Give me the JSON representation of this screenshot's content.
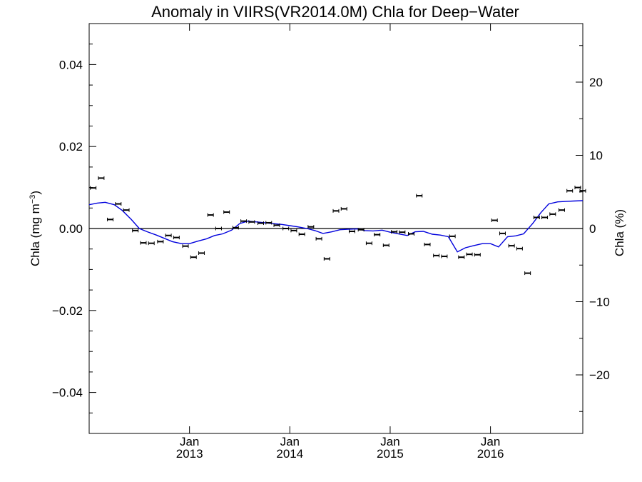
{
  "chart_data": {
    "type": "scatter",
    "title": "Anomaly in VIIRS(VR2014.0M) Chla for Deep−Water",
    "ylabel_left": "Chla (mg m",
    "ylabel_left_sup": "−3",
    "ylabel_left_close": ")",
    "ylabel_right": "Chla (%)",
    "xlim": [
      2012.0,
      2016.92
    ],
    "ylim_left": [
      -0.05,
      0.05
    ],
    "ylim_right": [
      -28.0,
      28.0
    ],
    "left_ticks": [
      {
        "value": 0.04,
        "label": "0.04"
      },
      {
        "value": 0.02,
        "label": "0.02"
      },
      {
        "value": 0.0,
        "label": "0.00"
      },
      {
        "value": -0.02,
        "label": "−0.02"
      },
      {
        "value": -0.04,
        "label": "−0.04"
      }
    ],
    "right_ticks": [
      {
        "value": 20,
        "label": "20"
      },
      {
        "value": 10,
        "label": "10"
      },
      {
        "value": 0,
        "label": "0"
      },
      {
        "value": -10,
        "label": "−10"
      },
      {
        "value": -20,
        "label": "−20"
      }
    ],
    "x_ticks": [
      {
        "value": 2013.0,
        "month": "Jan",
        "year": "2013"
      },
      {
        "value": 2014.0,
        "month": "Jan",
        "year": "2014"
      },
      {
        "value": 2015.0,
        "month": "Jan",
        "year": "2015"
      },
      {
        "value": 2016.0,
        "month": "Jan",
        "year": "2016"
      }
    ],
    "zero_line": 0.0,
    "points": [
      {
        "x": 2012.04,
        "y": 0.0099
      },
      {
        "x": 2012.12,
        "y": 0.0123
      },
      {
        "x": 2012.21,
        "y": 0.0022
      },
      {
        "x": 2012.29,
        "y": 0.006
      },
      {
        "x": 2012.37,
        "y": 0.0045
      },
      {
        "x": 2012.46,
        "y": -0.0005
      },
      {
        "x": 2012.54,
        "y": -0.0035
      },
      {
        "x": 2012.62,
        "y": -0.0036
      },
      {
        "x": 2012.71,
        "y": -0.0032
      },
      {
        "x": 2012.79,
        "y": -0.0017
      },
      {
        "x": 2012.87,
        "y": -0.0022
      },
      {
        "x": 2012.96,
        "y": -0.0043
      },
      {
        "x": 2013.04,
        "y": -0.007
      },
      {
        "x": 2013.12,
        "y": -0.006
      },
      {
        "x": 2013.21,
        "y": 0.0033
      },
      {
        "x": 2013.29,
        "y": 0.0
      },
      {
        "x": 2013.37,
        "y": 0.004
      },
      {
        "x": 2013.46,
        "y": 0.0002
      },
      {
        "x": 2013.54,
        "y": 0.0018
      },
      {
        "x": 2013.62,
        "y": 0.0016
      },
      {
        "x": 2013.71,
        "y": 0.0013
      },
      {
        "x": 2013.79,
        "y": 0.0014
      },
      {
        "x": 2013.87,
        "y": 0.0008
      },
      {
        "x": 2013.96,
        "y": 0.0
      },
      {
        "x": 2014.04,
        "y": -0.0005
      },
      {
        "x": 2014.12,
        "y": -0.0014
      },
      {
        "x": 2014.21,
        "y": 0.0004
      },
      {
        "x": 2014.29,
        "y": -0.0025
      },
      {
        "x": 2014.37,
        "y": -0.0074
      },
      {
        "x": 2014.46,
        "y": 0.0043
      },
      {
        "x": 2014.54,
        "y": 0.0048
      },
      {
        "x": 2014.62,
        "y": -0.0007
      },
      {
        "x": 2014.71,
        "y": -0.0003
      },
      {
        "x": 2014.79,
        "y": -0.0036
      },
      {
        "x": 2014.87,
        "y": -0.0015
      },
      {
        "x": 2014.96,
        "y": -0.0041
      },
      {
        "x": 2015.04,
        "y": -0.0008
      },
      {
        "x": 2015.12,
        "y": -0.0009
      },
      {
        "x": 2015.21,
        "y": -0.0013
      },
      {
        "x": 2015.29,
        "y": 0.008
      },
      {
        "x": 2015.37,
        "y": -0.0039
      },
      {
        "x": 2015.46,
        "y": -0.0066
      },
      {
        "x": 2015.54,
        "y": -0.0068
      },
      {
        "x": 2015.62,
        "y": -0.0019
      },
      {
        "x": 2015.71,
        "y": -0.007
      },
      {
        "x": 2015.79,
        "y": -0.0063
      },
      {
        "x": 2015.87,
        "y": -0.0064
      },
      {
        "x": 2016.04,
        "y": 0.002
      },
      {
        "x": 2016.12,
        "y": -0.0012
      },
      {
        "x": 2016.21,
        "y": -0.0042
      },
      {
        "x": 2016.29,
        "y": -0.0049
      },
      {
        "x": 2016.37,
        "y": -0.0109
      },
      {
        "x": 2016.46,
        "y": 0.0027
      },
      {
        "x": 2016.54,
        "y": 0.0027
      },
      {
        "x": 2016.62,
        "y": 0.0035
      },
      {
        "x": 2016.71,
        "y": 0.0045
      },
      {
        "x": 2016.79,
        "y": 0.0092
      },
      {
        "x": 2016.87,
        "y": 0.01
      },
      {
        "x": 2016.92,
        "y": 0.0092
      }
    ],
    "trend": {
      "color": "#0000dd",
      "x": [
        2012.0,
        2012.08,
        2012.16,
        2012.25,
        2012.33,
        2012.42,
        2012.5,
        2012.58,
        2012.67,
        2012.75,
        2012.83,
        2012.92,
        2013.0,
        2013.08,
        2013.17,
        2013.25,
        2013.33,
        2013.42,
        2013.5,
        2013.58,
        2013.67,
        2013.75,
        2013.83,
        2013.92,
        2014.0,
        2014.08,
        2014.17,
        2014.25,
        2014.33,
        2014.42,
        2014.5,
        2014.58,
        2014.67,
        2014.75,
        2014.83,
        2014.92,
        2015.0,
        2015.08,
        2015.17,
        2015.25,
        2015.33,
        2015.42,
        2015.5,
        2015.58,
        2015.67,
        2015.75,
        2015.83,
        2015.92,
        2016.0,
        2016.08,
        2016.17,
        2016.25,
        2016.33,
        2016.42,
        2016.5,
        2016.58,
        2016.67,
        2016.75,
        2016.83,
        2016.92
      ],
      "y": [
        0.0058,
        0.0062,
        0.0064,
        0.0058,
        0.0044,
        0.0022,
        0.0,
        -0.0008,
        -0.0016,
        -0.0024,
        -0.0032,
        -0.0037,
        -0.0037,
        -0.0031,
        -0.0025,
        -0.0017,
        -0.0013,
        -0.0004,
        0.0012,
        0.0018,
        0.0016,
        0.0014,
        0.0012,
        0.001,
        0.0007,
        0.0004,
        0.0,
        -0.0005,
        -0.0012,
        -0.0008,
        -0.0003,
        -0.0002,
        -0.0001,
        -0.0005,
        -0.0006,
        -0.0004,
        -0.0009,
        -0.0013,
        -0.0017,
        -0.0008,
        -0.0007,
        -0.0014,
        -0.0016,
        -0.002,
        -0.0057,
        -0.0047,
        -0.0042,
        -0.0037,
        -0.0037,
        -0.0045,
        -0.002,
        -0.0018,
        -0.0013,
        0.0012,
        0.0038,
        0.006,
        0.0065,
        0.0066,
        0.0067,
        0.0068
      ]
    }
  }
}
